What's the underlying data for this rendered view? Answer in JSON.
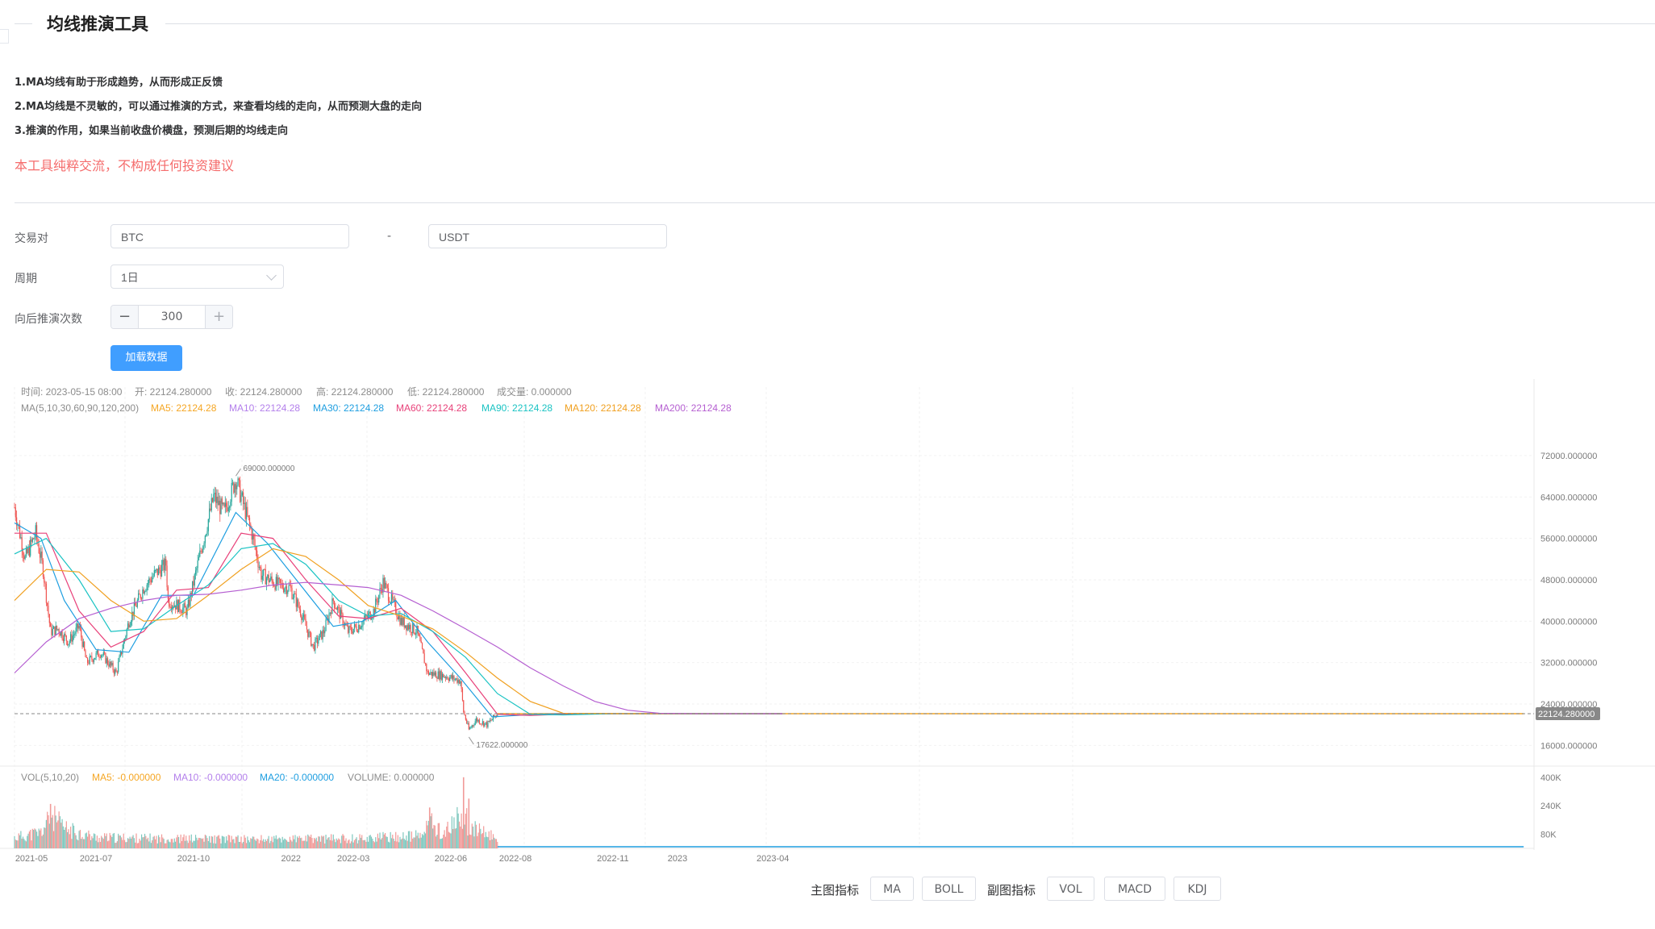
{
  "page": {
    "title": "均线推演工具",
    "notes": [
      "1.MA均线有助于形成趋势，从而形成正反馈",
      "2.MA均线是不灵敏的，可以通过推演的方式，来查看均线的走向，从而预测大盘的走向",
      "3.推演的作用，如果当前收盘价横盘，预测后期的均线走向"
    ],
    "disclaimer": "本工具纯粹交流，不构成任何投资建议"
  },
  "form": {
    "pair_label": "交易对",
    "base_value": "BTC",
    "separator": "-",
    "quote_value": "USDT",
    "period_label": "周期",
    "period_value": "1日",
    "steps_label": "向后推演次数",
    "steps_minus": "−",
    "steps_value": "300",
    "steps_plus": "+",
    "load_button": "加载数据"
  },
  "chart_data": {
    "type": "candlestick",
    "info_line": {
      "time_label": "时间:",
      "time_value": "2023-05-15 08:00",
      "open_label": "开:",
      "open_value": "22124.280000",
      "close_label": "收:",
      "close_value": "22124.280000",
      "high_label": "高:",
      "high_value": "22124.280000",
      "low_label": "低:",
      "low_value": "22124.280000",
      "volume_label": "成交量:",
      "volume_value": "0.000000"
    },
    "ma_legend": {
      "title": "MA(5,10,30,60,90,120,200)",
      "items": [
        {
          "label": "MA5:",
          "value": "22124.28",
          "color": "#f5a623"
        },
        {
          "label": "MA10:",
          "value": "22124.28",
          "color": "#b37feb"
        },
        {
          "label": "MA30:",
          "value": "22124.28",
          "color": "#1e9ee0"
        },
        {
          "label": "MA60:",
          "value": "22124.28",
          "color": "#e8417a"
        },
        {
          "label": "MA90:",
          "value": "22124.28",
          "color": "#1ac3c3"
        },
        {
          "label": "MA120:",
          "value": "22124.28",
          "color": "#f0a020"
        },
        {
          "label": "MA200:",
          "value": "22124.28",
          "color": "#b55fd1"
        }
      ]
    },
    "y_ticks": [
      {
        "value": 72000,
        "label": "72000.000000"
      },
      {
        "value": 64000,
        "label": "64000.000000"
      },
      {
        "value": 56000,
        "label": "56000.000000"
      },
      {
        "value": 48000,
        "label": "48000.000000"
      },
      {
        "value": 40000,
        "label": "40000.000000"
      },
      {
        "value": 32000,
        "label": "32000.000000"
      },
      {
        "value": 24000,
        "label": "24000.000000"
      },
      {
        "value": 16000,
        "label": "16000.000000"
      }
    ],
    "ylim": [
      12000,
      79000
    ],
    "max_marker": {
      "value": 69000,
      "label": "69000.000000",
      "date": "2021-11-10"
    },
    "min_marker": {
      "value": 17622,
      "label": "17622.000000",
      "date": "2022-06-18"
    },
    "last_price": {
      "value": 22124.28,
      "label": "22124.280000"
    },
    "x_range": [
      "2021-04-15",
      "2023-04-10"
    ],
    "chart_end_date": "2025-03-10",
    "data_end_date": "2022-07-15",
    "x_ticks": [
      {
        "date": "2021-05-01",
        "label": "2021-05"
      },
      {
        "date": "2021-07-01",
        "label": "2021-07"
      },
      {
        "date": "2021-10-01",
        "label": "2021-10"
      },
      {
        "date": "2022-01-01",
        "label": "2022"
      },
      {
        "date": "2022-03-01",
        "label": "2022-03"
      },
      {
        "date": "2022-06-01",
        "label": "2022-06"
      },
      {
        "date": "2022-08-01",
        "label": "2022-08"
      },
      {
        "date": "2022-11-01",
        "label": "2022-11"
      },
      {
        "date": "2023-01-01",
        "label": "2023"
      },
      {
        "date": "2023-04-01",
        "label": "2023-04"
      }
    ],
    "price_path": [
      [
        "2021-04-15",
        62000
      ],
      [
        "2021-04-25",
        52000
      ],
      [
        "2021-05-05",
        57000
      ],
      [
        "2021-05-12",
        50000
      ],
      [
        "2021-05-19",
        38000
      ],
      [
        "2021-05-26",
        38500
      ],
      [
        "2021-06-05",
        36000
      ],
      [
        "2021-06-15",
        39000
      ],
      [
        "2021-06-22",
        32000
      ],
      [
        "2021-07-05",
        34000
      ],
      [
        "2021-07-20",
        30000
      ],
      [
        "2021-08-01",
        40000
      ],
      [
        "2021-08-15",
        46500
      ],
      [
        "2021-08-25",
        49000
      ],
      [
        "2021-09-05",
        51000
      ],
      [
        "2021-09-07",
        44000
      ],
      [
        "2021-09-25",
        42000
      ],
      [
        "2021-10-05",
        51000
      ],
      [
        "2021-10-20",
        64000
      ],
      [
        "2021-10-30",
        61000
      ],
      [
        "2021-11-10",
        67500
      ],
      [
        "2021-11-25",
        57000
      ],
      [
        "2021-12-04",
        49000
      ],
      [
        "2021-12-20",
        47000
      ],
      [
        "2021-12-31",
        46500
      ],
      [
        "2022-01-10",
        42000
      ],
      [
        "2022-01-22",
        35000
      ],
      [
        "2022-02-01",
        38000
      ],
      [
        "2022-02-10",
        44000
      ],
      [
        "2022-02-24",
        38000
      ],
      [
        "2022-03-05",
        39000
      ],
      [
        "2022-03-20",
        42000
      ],
      [
        "2022-03-29",
        47500
      ],
      [
        "2022-04-15",
        40000
      ],
      [
        "2022-04-30",
        38000
      ],
      [
        "2022-05-10",
        30000
      ],
      [
        "2022-05-25",
        29500
      ],
      [
        "2022-06-10",
        28500
      ],
      [
        "2022-06-13",
        22500
      ],
      [
        "2022-06-18",
        19000
      ],
      [
        "2022-06-25",
        21000
      ],
      [
        "2022-07-05",
        20000
      ],
      [
        "2022-07-15",
        22124.28
      ]
    ],
    "ma_series": [
      {
        "name": "MA30",
        "color": "#1e9ee0",
        "points": [
          [
            "2021-04-15",
            59000
          ],
          [
            "2021-05-10",
            56000
          ],
          [
            "2021-06-01",
            44000
          ],
          [
            "2021-07-01",
            34500
          ],
          [
            "2021-08-01",
            34000
          ],
          [
            "2021-09-01",
            45000
          ],
          [
            "2021-10-01",
            45000
          ],
          [
            "2021-11-10",
            61000
          ],
          [
            "2021-12-10",
            55000
          ],
          [
            "2022-01-10",
            47000
          ],
          [
            "2022-02-10",
            39000
          ],
          [
            "2022-03-10",
            40000
          ],
          [
            "2022-04-10",
            44000
          ],
          [
            "2022-05-10",
            36000
          ],
          [
            "2022-06-10",
            29000
          ],
          [
            "2022-07-10",
            21500
          ],
          [
            "2022-08-10",
            21900
          ],
          [
            "2022-09-10",
            22124
          ],
          [
            "2023-04-10",
            22124
          ]
        ]
      },
      {
        "name": "MA60",
        "color": "#e8417a",
        "points": [
          [
            "2021-04-15",
            57000
          ],
          [
            "2021-05-15",
            57000
          ],
          [
            "2021-06-15",
            42000
          ],
          [
            "2021-07-15",
            35000
          ],
          [
            "2021-08-15",
            38000
          ],
          [
            "2021-09-15",
            46000
          ],
          [
            "2021-10-15",
            46500
          ],
          [
            "2021-11-15",
            57000
          ],
          [
            "2021-12-15",
            56000
          ],
          [
            "2022-01-15",
            48000
          ],
          [
            "2022-02-15",
            41000
          ],
          [
            "2022-03-15",
            40500
          ],
          [
            "2022-04-15",
            42500
          ],
          [
            "2022-05-15",
            38000
          ],
          [
            "2022-06-15",
            30000
          ],
          [
            "2022-07-15",
            22000
          ],
          [
            "2022-08-15",
            21800
          ],
          [
            "2022-10-01",
            22124
          ],
          [
            "2023-04-10",
            22124
          ]
        ]
      },
      {
        "name": "MA90",
        "color": "#1ac3c3",
        "points": [
          [
            "2021-04-15",
            53000
          ],
          [
            "2021-05-15",
            56000
          ],
          [
            "2021-06-15",
            48000
          ],
          [
            "2021-07-15",
            38000
          ],
          [
            "2021-08-15",
            38500
          ],
          [
            "2021-09-15",
            43000
          ],
          [
            "2021-10-15",
            47000
          ],
          [
            "2021-11-15",
            54000
          ],
          [
            "2021-12-15",
            55000
          ],
          [
            "2022-01-15",
            51000
          ],
          [
            "2022-02-15",
            44000
          ],
          [
            "2022-03-15",
            41000
          ],
          [
            "2022-04-15",
            41500
          ],
          [
            "2022-05-15",
            38000
          ],
          [
            "2022-06-15",
            33000
          ],
          [
            "2022-07-15",
            26000
          ],
          [
            "2022-08-15",
            22000
          ],
          [
            "2022-09-15",
            21900
          ],
          [
            "2022-11-01",
            22124
          ],
          [
            "2023-04-10",
            22124
          ]
        ]
      },
      {
        "name": "MA120",
        "color": "#f0a020",
        "points": [
          [
            "2021-04-15",
            44000
          ],
          [
            "2021-05-15",
            50000
          ],
          [
            "2021-06-15",
            49500
          ],
          [
            "2021-07-15",
            44000
          ],
          [
            "2021-08-15",
            40000
          ],
          [
            "2021-09-15",
            40500
          ],
          [
            "2021-10-15",
            45000
          ],
          [
            "2021-11-15",
            50000
          ],
          [
            "2021-12-15",
            54000
          ],
          [
            "2022-01-15",
            52500
          ],
          [
            "2022-02-15",
            48000
          ],
          [
            "2022-03-15",
            43000
          ],
          [
            "2022-04-15",
            41000
          ],
          [
            "2022-05-15",
            38500
          ],
          [
            "2022-06-15",
            34000
          ],
          [
            "2022-07-15",
            29000
          ],
          [
            "2022-08-15",
            24500
          ],
          [
            "2022-09-15",
            22200
          ],
          [
            "2022-11-15",
            22124
          ],
          [
            "2023-04-10",
            22124
          ]
        ]
      },
      {
        "name": "MA200",
        "color": "#b55fd1",
        "points": [
          [
            "2021-04-15",
            30000
          ],
          [
            "2021-05-15",
            36000
          ],
          [
            "2021-06-15",
            40500
          ],
          [
            "2021-07-15",
            42500
          ],
          [
            "2021-08-15",
            44000
          ],
          [
            "2021-09-15",
            45000
          ],
          [
            "2021-10-15",
            45200
          ],
          [
            "2021-11-15",
            46000
          ],
          [
            "2021-12-15",
            47000
          ],
          [
            "2022-01-15",
            47500
          ],
          [
            "2022-02-15",
            47000
          ],
          [
            "2022-03-15",
            46500
          ],
          [
            "2022-04-15",
            45000
          ],
          [
            "2022-05-15",
            42000
          ],
          [
            "2022-06-15",
            38500
          ],
          [
            "2022-07-15",
            35000
          ],
          [
            "2022-08-15",
            31000
          ],
          [
            "2022-09-15",
            27500
          ],
          [
            "2022-10-15",
            24500
          ],
          [
            "2022-11-15",
            22800
          ],
          [
            "2022-12-15",
            22200
          ],
          [
            "2023-01-20",
            22124
          ],
          [
            "2023-04-10",
            22124
          ]
        ]
      }
    ],
    "volume": {
      "legend_title": "VOL(5,10,20)",
      "items": [
        {
          "label": "MA5:",
          "value": "-0.000000",
          "color": "#f5a623"
        },
        {
          "label": "MA10:",
          "value": "-0.000000",
          "color": "#b37feb"
        },
        {
          "label": "MA20:",
          "value": "-0.000000",
          "color": "#1e9ee0"
        }
      ],
      "volume_label": "VOLUME:",
      "volume_value": "0.000000",
      "y_ticks": [
        {
          "value": 400000,
          "label": "400K"
        },
        {
          "value": 240000,
          "label": "240K"
        },
        {
          "value": 80000,
          "label": "80K"
        }
      ],
      "ylim": [
        0,
        440000
      ],
      "profile": [
        [
          "2021-04-15",
          60000
        ],
        [
          "2021-05-10",
          90000
        ],
        [
          "2021-05-20",
          180000
        ],
        [
          "2021-06-01",
          110000
        ],
        [
          "2021-07-01",
          60000
        ],
        [
          "2021-09-01",
          55000
        ],
        [
          "2021-12-01",
          50000
        ],
        [
          "2022-03-01",
          55000
        ],
        [
          "2022-05-05",
          70000
        ],
        [
          "2022-05-12",
          150000
        ],
        [
          "2022-05-25",
          80000
        ],
        [
          "2022-06-13",
          190000
        ],
        [
          "2022-06-20",
          110000
        ],
        [
          "2022-07-15",
          60000
        ]
      ],
      "spikes": [
        [
          "2021-05-19",
          250000
        ],
        [
          "2022-05-12",
          230000
        ],
        [
          "2022-06-13",
          400000
        ],
        [
          "2022-06-18",
          280000
        ]
      ]
    }
  },
  "indicators": {
    "main_label": "主图指标",
    "main_buttons": [
      "MA",
      "BOLL"
    ],
    "sub_label": "副图指标",
    "sub_buttons": [
      "VOL",
      "MACD",
      "KDJ"
    ]
  }
}
